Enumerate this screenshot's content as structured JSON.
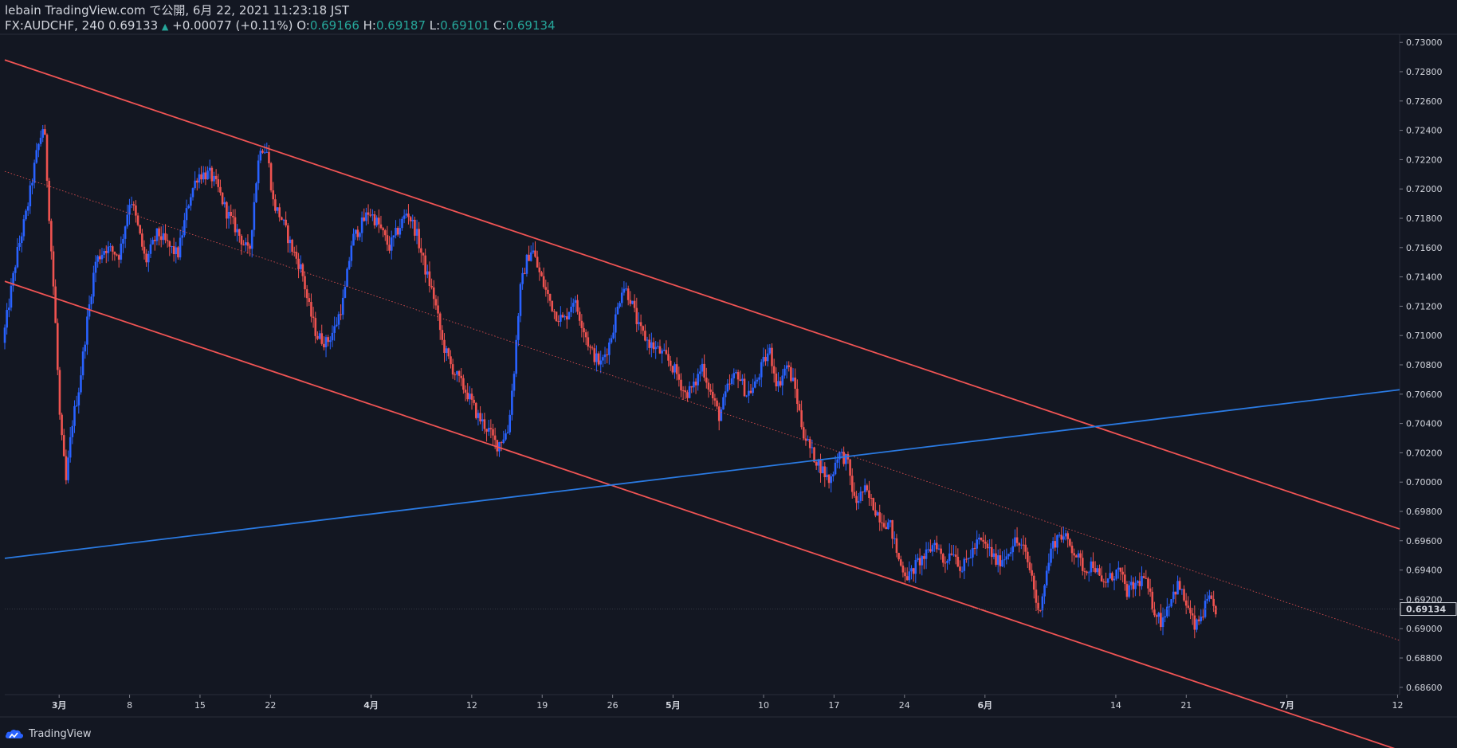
{
  "header": {
    "publish_line": "lebain TradingView.com で公開, 6月 22, 2021 11:23:18 JST",
    "symbol": "FX:AUDCHF, 240",
    "last_price": "0.69133",
    "up_arrow": "▲",
    "change": "+0.00077 (+0.11%)",
    "o_label": "O:",
    "o_value": "0.69166",
    "h_label": "H:",
    "h_value": "0.69187",
    "l_label": "L:",
    "l_value": "0.69101",
    "c_label": "C:",
    "c_value": "0.69134"
  },
  "footer": {
    "brand": "TradingView",
    "logo_icon": "tradingview-cloud-icon"
  },
  "colors": {
    "background": "#131722",
    "up": "#2962ff",
    "down": "#ef5350",
    "channel": "#f05454",
    "trendline": "#2a7ae2",
    "price_label_bg": "#131722"
  },
  "chart_data": {
    "type": "candlestick",
    "symbol": "FX:AUDCHF",
    "interval": "240",
    "ylim": [
      0.6855,
      0.7305
    ],
    "y_ticks": [
      "0.73000",
      "0.72800",
      "0.72600",
      "0.72400",
      "0.72200",
      "0.72000",
      "0.71800",
      "0.71600",
      "0.71400",
      "0.71200",
      "0.71000",
      "0.70800",
      "0.70600",
      "0.70400",
      "0.70200",
      "0.70000",
      "0.69800",
      "0.69600",
      "0.69400",
      "0.69200",
      "0.69000",
      "0.68800",
      "0.68600"
    ],
    "x_ticks": [
      {
        "label": "3月",
        "day": 1,
        "bold": true
      },
      {
        "label": "8",
        "day": 8,
        "bold": false
      },
      {
        "label": "15",
        "day": 15,
        "bold": false
      },
      {
        "label": "22",
        "day": 22,
        "bold": false
      },
      {
        "label": "4月",
        "day": 32,
        "bold": true
      },
      {
        "label": "12",
        "day": 42,
        "bold": false
      },
      {
        "label": "19",
        "day": 49,
        "bold": false
      },
      {
        "label": "26",
        "day": 56,
        "bold": false
      },
      {
        "label": "5月",
        "day": 62,
        "bold": true
      },
      {
        "label": "10",
        "day": 71,
        "bold": false
      },
      {
        "label": "17",
        "day": 78,
        "bold": false
      },
      {
        "label": "24",
        "day": 85,
        "bold": false
      },
      {
        "label": "6月",
        "day": 93,
        "bold": true
      },
      {
        "label": "14",
        "day": 106,
        "bold": false
      },
      {
        "label": "21",
        "day": 113,
        "bold": false
      },
      {
        "label": "7月",
        "day": 123,
        "bold": true
      },
      {
        "label": "12",
        "day": 134,
        "bold": false
      }
    ],
    "x_domain_days": [
      -4.4,
      134.2
    ],
    "price_path": [
      [
        -4.4,
        0.7095
      ],
      [
        -3.0,
        0.7155
      ],
      [
        -2.0,
        0.7185
      ],
      [
        -1.0,
        0.7225
      ],
      [
        -0.3,
        0.7245
      ],
      [
        0.2,
        0.7185
      ],
      [
        0.8,
        0.7115
      ],
      [
        1.3,
        0.704
      ],
      [
        1.9,
        0.7
      ],
      [
        2.5,
        0.704
      ],
      [
        3.2,
        0.7065
      ],
      [
        4.0,
        0.711
      ],
      [
        4.8,
        0.715
      ],
      [
        5.8,
        0.716
      ],
      [
        7.2,
        0.7155
      ],
      [
        8.3,
        0.7195
      ],
      [
        9.0,
        0.7175
      ],
      [
        9.8,
        0.715
      ],
      [
        11.0,
        0.717
      ],
      [
        12.2,
        0.716
      ],
      [
        13.0,
        0.7155
      ],
      [
        14.2,
        0.7195
      ],
      [
        15.0,
        0.721
      ],
      [
        16.2,
        0.721
      ],
      [
        17.0,
        0.72
      ],
      [
        17.8,
        0.7185
      ],
      [
        19.0,
        0.717
      ],
      [
        20.1,
        0.7155
      ],
      [
        20.7,
        0.72
      ],
      [
        21.2,
        0.723
      ],
      [
        21.9,
        0.7225
      ],
      [
        22.5,
        0.719
      ],
      [
        23.3,
        0.718
      ],
      [
        24.3,
        0.716
      ],
      [
        25.3,
        0.7145
      ],
      [
        26.0,
        0.712
      ],
      [
        26.8,
        0.71
      ],
      [
        27.8,
        0.7095
      ],
      [
        28.6,
        0.7105
      ],
      [
        29.5,
        0.7125
      ],
      [
        30.3,
        0.7165
      ],
      [
        31.2,
        0.7175
      ],
      [
        32.0,
        0.7185
      ],
      [
        33.0,
        0.7175
      ],
      [
        34.0,
        0.716
      ],
      [
        35.1,
        0.7175
      ],
      [
        35.8,
        0.7185
      ],
      [
        36.7,
        0.717
      ],
      [
        37.6,
        0.7145
      ],
      [
        38.5,
        0.7125
      ],
      [
        39.3,
        0.7095
      ],
      [
        40.1,
        0.708
      ],
      [
        40.9,
        0.707
      ],
      [
        41.8,
        0.706
      ],
      [
        42.8,
        0.7045
      ],
      [
        43.9,
        0.7035
      ],
      [
        44.7,
        0.7025
      ],
      [
        45.8,
        0.7035
      ],
      [
        46.4,
        0.7075
      ],
      [
        47.0,
        0.713
      ],
      [
        47.6,
        0.715
      ],
      [
        48.2,
        0.716
      ],
      [
        48.8,
        0.7145
      ],
      [
        49.6,
        0.713
      ],
      [
        50.5,
        0.7115
      ],
      [
        51.4,
        0.711
      ],
      [
        52.3,
        0.7125
      ],
      [
        53.1,
        0.711
      ],
      [
        54.0,
        0.709
      ],
      [
        55.0,
        0.708
      ],
      [
        55.9,
        0.7095
      ],
      [
        56.6,
        0.7115
      ],
      [
        57.2,
        0.7135
      ],
      [
        58.0,
        0.7125
      ],
      [
        58.8,
        0.7105
      ],
      [
        59.8,
        0.7095
      ],
      [
        60.7,
        0.709
      ],
      [
        61.5,
        0.7085
      ],
      [
        62.5,
        0.7075
      ],
      [
        63.4,
        0.706
      ],
      [
        64.3,
        0.7065
      ],
      [
        65.1,
        0.708
      ],
      [
        66.0,
        0.706
      ],
      [
        66.8,
        0.7045
      ],
      [
        67.7,
        0.7065
      ],
      [
        68.6,
        0.7075
      ],
      [
        69.5,
        0.706
      ],
      [
        70.3,
        0.7065
      ],
      [
        71.1,
        0.708
      ],
      [
        71.8,
        0.709
      ],
      [
        72.6,
        0.7065
      ],
      [
        73.5,
        0.708
      ],
      [
        74.3,
        0.7065
      ],
      [
        75.1,
        0.7035
      ],
      [
        76.0,
        0.702
      ],
      [
        76.9,
        0.701
      ],
      [
        77.8,
        0.7
      ],
      [
        78.6,
        0.702
      ],
      [
        79.5,
        0.7015
      ],
      [
        80.3,
        0.6985
      ],
      [
        81.2,
        0.6995
      ],
      [
        82.0,
        0.6985
      ],
      [
        82.9,
        0.6975
      ],
      [
        83.8,
        0.697
      ],
      [
        84.7,
        0.6945
      ],
      [
        85.6,
        0.6935
      ],
      [
        86.5,
        0.6945
      ],
      [
        87.4,
        0.695
      ],
      [
        88.3,
        0.696
      ],
      [
        89.1,
        0.6945
      ],
      [
        90.0,
        0.6955
      ],
      [
        90.9,
        0.694
      ],
      [
        91.7,
        0.695
      ],
      [
        92.6,
        0.696
      ],
      [
        93.5,
        0.6955
      ],
      [
        94.4,
        0.6945
      ],
      [
        95.3,
        0.695
      ],
      [
        96.1,
        0.696
      ],
      [
        97.0,
        0.6955
      ],
      [
        97.9,
        0.6935
      ],
      [
        98.5,
        0.691
      ],
      [
        99.1,
        0.693
      ],
      [
        99.8,
        0.6955
      ],
      [
        100.6,
        0.6965
      ],
      [
        101.4,
        0.696
      ],
      [
        102.3,
        0.695
      ],
      [
        103.1,
        0.694
      ],
      [
        104.0,
        0.6945
      ],
      [
        104.8,
        0.693
      ],
      [
        105.7,
        0.6935
      ],
      [
        106.5,
        0.694
      ],
      [
        107.3,
        0.6925
      ],
      [
        108.2,
        0.693
      ],
      [
        109.0,
        0.6935
      ],
      [
        109.9,
        0.6915
      ],
      [
        110.7,
        0.6905
      ],
      [
        111.6,
        0.692
      ],
      [
        112.4,
        0.693
      ],
      [
        113.3,
        0.6915
      ],
      [
        114.1,
        0.69
      ],
      [
        114.8,
        0.691
      ],
      [
        115.4,
        0.692
      ],
      [
        116.0,
        0.6913
      ]
    ],
    "last_price_label": "0.69134",
    "channel_upper": {
      "from": [
        -4.4,
        0.7288
      ],
      "to": [
        134.2,
        0.6968
      ]
    },
    "channel_lower": {
      "from": [
        -4.4,
        0.7137
      ],
      "to": [
        134.2,
        0.6817
      ]
    },
    "channel_mid": {
      "from": [
        -4.4,
        0.7212
      ],
      "to": [
        134.2,
        0.6892
      ]
    },
    "trendline": {
      "from": [
        -4.4,
        0.6948
      ],
      "to": [
        134.2,
        0.7063
      ]
    }
  }
}
